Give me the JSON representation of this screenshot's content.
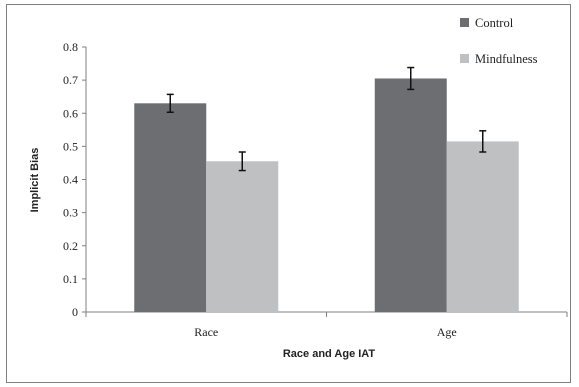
{
  "chart_data": {
    "type": "bar",
    "title": "",
    "xlabel": "Race and Age IAT",
    "ylabel": "Implicit Bias",
    "categories": [
      "Race",
      "Age"
    ],
    "ylim": [
      0,
      0.8
    ],
    "yticks": [
      "0",
      "0.1",
      "0.2",
      "0.3",
      "0.4",
      "0.5",
      "0.6",
      "0.7",
      "0.8"
    ],
    "series": [
      {
        "name": "Control",
        "color": "#6d6e71",
        "values": [
          0.63,
          0.705
        ],
        "errors": [
          0.027,
          0.033
        ]
      },
      {
        "name": "Mindfulness",
        "color": "#bfc0c2",
        "values": [
          0.455,
          0.515
        ],
        "errors": [
          0.028,
          0.032
        ]
      }
    ],
    "grid": false,
    "legend": "top-right"
  }
}
